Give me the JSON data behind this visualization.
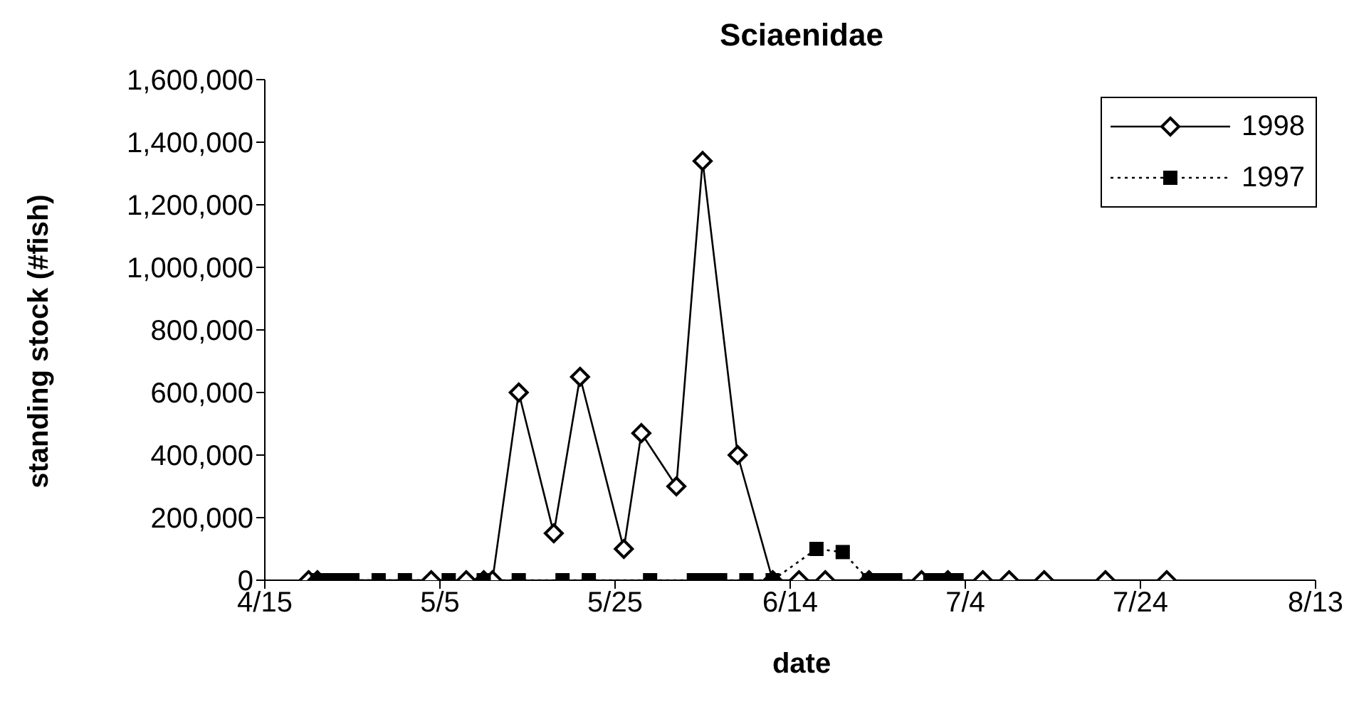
{
  "chart_data": {
    "type": "line",
    "title": "Sciaenidae",
    "xlabel": "date",
    "ylabel": "standing stock (#fish)",
    "xlim": [
      "--04-15",
      "--08-13"
    ],
    "xticks": [
      {
        "value": "--04-15",
        "label": "4/15"
      },
      {
        "value": "--05-05",
        "label": "5/5"
      },
      {
        "value": "--05-25",
        "label": "5/25"
      },
      {
        "value": "--06-14",
        "label": "6/14"
      },
      {
        "value": "--07-04",
        "label": "7/4"
      },
      {
        "value": "--07-24",
        "label": "7/24"
      },
      {
        "value": "--08-13",
        "label": "8/13"
      }
    ],
    "ylim": [
      0,
      1600000
    ],
    "yticks": [
      0,
      {
        "value": 200000,
        "label": "200,000"
      },
      {
        "value": 400000,
        "label": "400,000"
      },
      {
        "value": 600000,
        "label": "600,000"
      },
      {
        "value": 800000,
        "label": "800,000"
      },
      {
        "value": 1000000,
        "label": "1,000,000"
      },
      {
        "value": 1200000,
        "label": "1,200,000"
      },
      {
        "value": 1400000,
        "label": "1,400,000"
      },
      {
        "value": 1600000,
        "label": "1,600,000"
      }
    ],
    "legend": "top right",
    "series": [
      {
        "name": "1998",
        "color": "#000000",
        "marker": "diamond",
        "line_style": "solid",
        "x": [
          "--04-20",
          "--04-21",
          "--05-04",
          "--05-08",
          "--05-10",
          "--05-11",
          "--05-14",
          "--05-18",
          "--05-21",
          "--05-26",
          "--05-28",
          "--06-01",
          "--06-04",
          "--06-08",
          "--06-12",
          "--06-15",
          "--06-18",
          "--06-23",
          "--06-29",
          "--07-02",
          "--07-06",
          "--07-09",
          "--07-13",
          "--07-20",
          "--07-27"
        ],
        "values": [
          0,
          0,
          0,
          0,
          0,
          0,
          600000,
          150000,
          650000,
          100000,
          470000,
          300000,
          1340000,
          400000,
          0,
          0,
          0,
          0,
          0,
          0,
          0,
          0,
          0,
          0,
          0
        ]
      },
      {
        "name": "1997",
        "color": "#000000",
        "marker": "square",
        "line_style": "dotted",
        "x": [
          "--04-21",
          "--04-22",
          "--04-23",
          "--04-24",
          "--04-25",
          "--04-28",
          "--05-01",
          "--05-06",
          "--05-10",
          "--05-14",
          "--05-19",
          "--05-22",
          "--05-29",
          "--06-03",
          "--06-04",
          "--06-05",
          "--06-06",
          "--06-09",
          "--06-12",
          "--06-17",
          "--06-20",
          "--06-23",
          "--06-24",
          "--06-25",
          "--06-26",
          "--06-30",
          "--07-01",
          "--07-02",
          "--07-03"
        ],
        "values": [
          0,
          0,
          0,
          0,
          0,
          0,
          0,
          0,
          0,
          0,
          0,
          0,
          0,
          0,
          0,
          0,
          0,
          0,
          0,
          100000,
          90000,
          0,
          0,
          0,
          0,
          0,
          0,
          0,
          0
        ]
      }
    ]
  }
}
